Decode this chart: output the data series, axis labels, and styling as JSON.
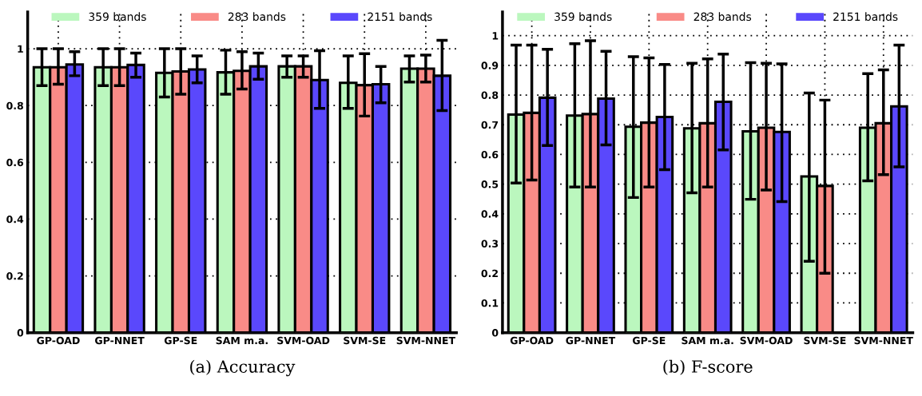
{
  "chart_data": [
    {
      "type": "bar",
      "categories": [
        "GP-OAD",
        "GP-NNET",
        "GP-SE",
        "SAM m.a.",
        "SVM-OAD",
        "SVM-SE",
        "SVM-NNET"
      ],
      "ylim": [
        0,
        1.13
      ],
      "yticks": [
        0,
        0.2,
        0.4,
        0.6,
        0.8,
        1
      ],
      "grid": true,
      "legend": "top",
      "annotations": [
        "(a) Accuracy"
      ],
      "series": [
        {
          "name": "359 bands",
          "color": "#bbf7be",
          "values": [
            0.935,
            0.935,
            0.915,
            0.917,
            0.938,
            0.88,
            0.93
          ],
          "errors": [
            [
              0.87,
              1.0
            ],
            [
              0.87,
              1.0
            ],
            [
              0.83,
              1.0
            ],
            [
              0.84,
              0.995
            ],
            [
              0.9,
              0.975
            ],
            [
              0.79,
              0.975
            ],
            [
              0.883,
              0.975
            ]
          ]
        },
        {
          "name": "283 bands",
          "color": "#f98b87",
          "values": [
            0.935,
            0.935,
            0.92,
            0.922,
            0.938,
            0.872,
            0.93
          ],
          "errors": [
            [
              0.875,
              1.0
            ],
            [
              0.87,
              1.0
            ],
            [
              0.84,
              1.0
            ],
            [
              0.858,
              0.99
            ],
            [
              0.9,
              0.975
            ],
            [
              0.763,
              0.983
            ],
            [
              0.883,
              0.978
            ]
          ]
        },
        {
          "name": "2151 bands",
          "color": "#5a48fc",
          "values": [
            0.945,
            0.943,
            0.927,
            0.938,
            0.89,
            0.875,
            0.905
          ],
          "errors": [
            [
              0.905,
              0.99
            ],
            [
              0.9,
              0.985
            ],
            [
              0.88,
              0.975
            ],
            [
              0.893,
              0.985
            ],
            [
              0.79,
              0.993
            ],
            [
              0.81,
              0.938
            ],
            [
              0.782,
              1.03
            ]
          ]
        }
      ]
    },
    {
      "type": "bar",
      "categories": [
        "GP-OAD",
        "GP-NNET",
        "GP-SE",
        "SAM m.a.",
        "SVM-OAD",
        "SVM-SE",
        "SVM-NNET"
      ],
      "ylim": [
        0,
        1.08
      ],
      "yticks": [
        0,
        0.1,
        0.2,
        0.3,
        0.4,
        0.5,
        0.6,
        0.7,
        0.8,
        0.9,
        1
      ],
      "grid": true,
      "legend": "top",
      "annotations": [
        "(b) F-score"
      ],
      "series": [
        {
          "name": "359 bands",
          "color": "#bbf7be",
          "values": [
            0.734,
            0.731,
            0.693,
            0.688,
            0.678,
            0.526,
            0.69
          ],
          "errors": [
            [
              0.504,
              0.968
            ],
            [
              0.49,
              0.973
            ],
            [
              0.455,
              0.929
            ],
            [
              0.471,
              0.907
            ],
            [
              0.449,
              0.909
            ],
            [
              0.24,
              0.807
            ],
            [
              0.511,
              0.872
            ]
          ]
        },
        {
          "name": "283 bands",
          "color": "#f98b87",
          "values": [
            0.74,
            0.736,
            0.707,
            0.705,
            0.69,
            0.494,
            0.705
          ],
          "errors": [
            [
              0.514,
              0.968
            ],
            [
              0.49,
              0.983
            ],
            [
              0.49,
              0.925
            ],
            [
              0.49,
              0.922
            ],
            [
              0.48,
              0.907
            ],
            [
              0.2,
              0.783
            ],
            [
              0.532,
              0.885
            ]
          ]
        },
        {
          "name": "2151 bands",
          "color": "#5a48fc",
          "values": [
            0.791,
            0.788,
            0.726,
            0.777,
            0.676,
            null,
            0.762
          ],
          "errors": [
            [
              0.63,
              0.954
            ],
            [
              0.632,
              0.947
            ],
            [
              0.549,
              0.903
            ],
            [
              0.615,
              0.938
            ],
            [
              0.441,
              0.905
            ],
            null,
            [
              0.558,
              0.968
            ]
          ]
        }
      ]
    }
  ]
}
